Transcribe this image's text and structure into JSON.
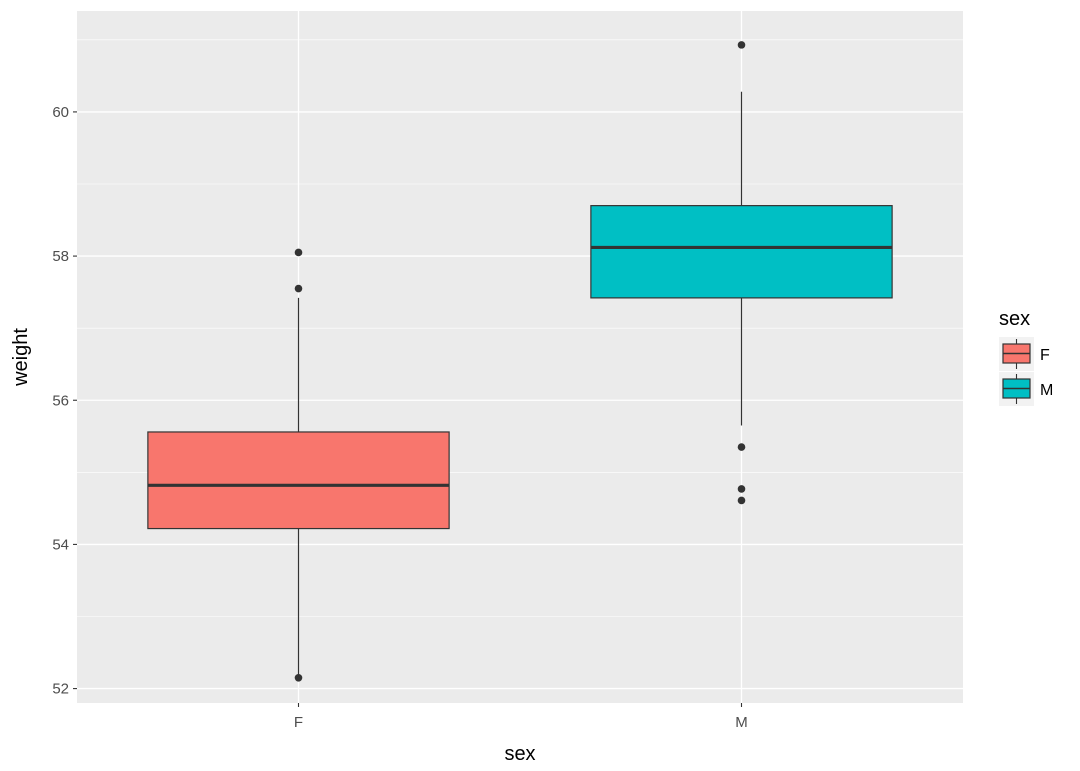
{
  "chart_data": {
    "type": "boxplot",
    "xlabel": "sex",
    "ylabel": "weight",
    "categories": [
      "F",
      "M"
    ],
    "ylim": [
      51.8,
      61.4
    ],
    "yticks": [
      52,
      54,
      56,
      58,
      60
    ],
    "grid": true,
    "legend": {
      "title": "sex",
      "placement": "right",
      "entries": [
        "F",
        "M"
      ]
    },
    "boxes": [
      {
        "category": "F",
        "color": "#F8766D",
        "q1": 54.22,
        "median": 54.82,
        "q3": 55.56,
        "whisker_low": 52.16,
        "whisker_high": 57.42,
        "outliers": [
          58.05,
          57.55,
          52.15
        ]
      },
      {
        "category": "M",
        "color": "#00BFC4",
        "q1": 57.42,
        "median": 58.12,
        "q3": 58.7,
        "whisker_low": 55.65,
        "whisker_high": 60.28,
        "outliers": [
          60.93,
          55.35,
          54.77,
          54.61
        ]
      }
    ],
    "colors": {
      "panel_background": "#EBEBEB",
      "grid_major": "#FFFFFF",
      "box_outline": "#333333",
      "outlier": "#333333"
    }
  }
}
